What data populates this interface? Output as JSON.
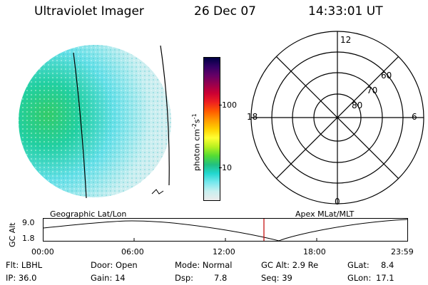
{
  "header": {
    "instrument": "Ultraviolet Imager",
    "date": "26 Dec 07",
    "time": "14:33:01 UT"
  },
  "colorbar": {
    "unit_label": "photon cm",
    "unit_exp1": "-2",
    "unit_mid": "s",
    "unit_exp2": "-1",
    "ticks": [
      "100",
      "10"
    ],
    "colors": [
      "#000044",
      "#330066",
      "#660066",
      "#99004d",
      "#cc0033",
      "#ee2020",
      "#ff5a00",
      "#ff9900",
      "#ffd000",
      "#ffff33",
      "#b8f020",
      "#55dd33",
      "#22c080",
      "#22d8d0",
      "#77e8ee",
      "#c8f0f0",
      "#ececec"
    ]
  },
  "polar": {
    "labels": {
      "top": "12",
      "bottom": "0",
      "left": "18",
      "right": "6"
    },
    "lat_labels": [
      "60",
      "70",
      "80"
    ]
  },
  "coords": {
    "left": "Geographic Lat/Lon",
    "right": "Apex MLat/MLT"
  },
  "timeline": {
    "ylabel": "GC Alt",
    "ymax": "9.0",
    "ymin": "1.8",
    "ticks": [
      "00:00",
      "06:00",
      "12:00",
      "18:00",
      "23:59"
    ]
  },
  "footer": {
    "row1": {
      "flt": "Flt: LBHL",
      "door": "Door: Open",
      "mode": "Mode: Normal",
      "gcalt": "GC Alt: 2.9 Re",
      "glat_label": "GLat:",
      "glat_value": "8.4"
    },
    "row2": {
      "ip": "IP: 36.0",
      "gain": "Gain: 14",
      "dsp_label": "Dsp:",
      "dsp_value": "7.8",
      "seq": "Seq: 39",
      "glon_label": "GLon:",
      "glon_value": "17.1"
    }
  }
}
